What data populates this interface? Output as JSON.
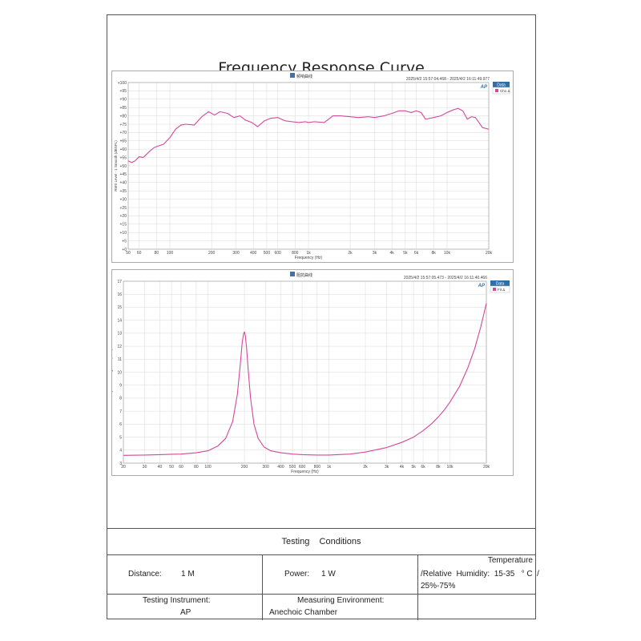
{
  "document": {
    "title": "Frequency Response Curve"
  },
  "panels": [
    {
      "header": "频响曲线",
      "timestamp": "2025/4/2 15:57:04.468 - 2025/4/2 16:11:49.977",
      "logo": "AP",
      "legend_title": "Data",
      "legend_entry": "Ch1 Δ",
      "ylabel": "RMS Level - 1 Smooth (dBSPL)",
      "xlabel": "Frequency (Hz)"
    },
    {
      "header": "阻抗曲线",
      "timestamp": "2025/4/2 15:57:05.473 - 2025/4/2 16:11:40.466",
      "logo": "AP",
      "legend_title": "Data",
      "legend_entry": "Fit Δ",
      "ylabel": "Impedance Magnitude (Ohm)",
      "xlabel": "Frequency (Hz)"
    }
  ],
  "conditions": {
    "title": "Testing    Conditions",
    "distance_label": "Distance:",
    "distance_value": "1 M",
    "power_label": "Power:",
    "power_value": "1 W",
    "temp_line1": "Temperature",
    "temp_line2": "/Relative  Humidity:  15-35   ° C  /",
    "temp_line3": "25%-75%",
    "instrument_label": "Testing Instrument:",
    "instrument_value": "AP",
    "environment_label": "Measuring Environment:",
    "environment_value": "Anechoic Chamber"
  },
  "colors": {
    "curve": "#d5479c",
    "legend_header": "#2f6fa8",
    "grid": "#d8d8d8"
  },
  "chart_data": [
    {
      "type": "line",
      "x_scale": "log",
      "xlim": [
        50,
        20000
      ],
      "ylim": [
        0,
        100
      ],
      "x_ticks": [
        50,
        60,
        80,
        100,
        200,
        300,
        400,
        500,
        600,
        800,
        1000,
        2000,
        3000,
        4000,
        5000,
        6000,
        8000,
        10000,
        20000
      ],
      "x_tick_labels": [
        "50",
        "60",
        "80",
        "100",
        "200",
        "300",
        "400",
        "500",
        "600",
        "800",
        "1k",
        "2k",
        "3k",
        "4k",
        "5k",
        "6k",
        "8k",
        "10k",
        "20k"
      ],
      "y_ticks": [
        0,
        5,
        10,
        15,
        20,
        25,
        30,
        35,
        40,
        45,
        50,
        55,
        60,
        65,
        70,
        75,
        80,
        85,
        90,
        95,
        100
      ],
      "y_tick_labels": [
        "+0",
        "+5",
        "+10",
        "+15",
        "+20",
        "+25",
        "+30",
        "+35",
        "+40",
        "+45",
        "+50",
        "+55",
        "+60",
        "+65",
        "+70",
        "+75",
        "+80",
        "+85",
        "+90",
        "+95",
        "+100"
      ],
      "grid": true,
      "legend_position": "right",
      "series": [
        {
          "name": "Ch1",
          "x": [
            50,
            53,
            56,
            60,
            64,
            68,
            72,
            77,
            83,
            90,
            100,
            110,
            120,
            130,
            150,
            170,
            190,
            210,
            230,
            260,
            290,
            320,
            350,
            390,
            430,
            480,
            530,
            600,
            680,
            760,
            850,
            950,
            1000,
            1100,
            1300,
            1500,
            1700,
            2000,
            2300,
            2700,
            3000,
            3500,
            4000,
            4500,
            5000,
            5500,
            6000,
            6500,
            7000,
            8000,
            9000,
            10000,
            11000,
            12000,
            13000,
            14000,
            15000,
            16000,
            17000,
            18000,
            20000
          ],
          "y": [
            53,
            52,
            53,
            55.5,
            55,
            57,
            59,
            61,
            62,
            63,
            67,
            72,
            74.5,
            75,
            74.5,
            79.5,
            82.5,
            80.5,
            82.5,
            81.5,
            79,
            80,
            77.5,
            76,
            73.5,
            77,
            78.5,
            79,
            77,
            76.5,
            76,
            76.5,
            76,
            76.5,
            76,
            80,
            80,
            79.5,
            79,
            79.5,
            79,
            80,
            81.5,
            83,
            83,
            82,
            83,
            82,
            78,
            79,
            80,
            82,
            83.5,
            84.5,
            83,
            78,
            79.5,
            79,
            76,
            73,
            72
          ]
        }
      ]
    },
    {
      "type": "line",
      "x_scale": "log",
      "xlim": [
        20,
        20000
      ],
      "ylim": [
        3,
        17
      ],
      "x_ticks": [
        20,
        30,
        40,
        50,
        60,
        80,
        100,
        200,
        300,
        400,
        500,
        600,
        800,
        1000,
        2000,
        3000,
        4000,
        5000,
        6000,
        8000,
        10000,
        20000
      ],
      "x_tick_labels": [
        "20",
        "30",
        "40",
        "50",
        "60",
        "80",
        "100",
        "200",
        "300",
        "400",
        "500",
        "600",
        "800",
        "1k",
        "2k",
        "3k",
        "4k",
        "5k",
        "6k",
        "8k",
        "10k",
        "20k"
      ],
      "y_ticks": [
        3,
        4,
        5,
        6,
        7,
        8,
        9,
        10,
        11,
        12,
        13,
        14,
        15,
        16,
        17
      ],
      "y_tick_labels": [
        "3",
        "4",
        "5",
        "6",
        "7",
        "8",
        "9",
        "10",
        "11",
        "12",
        "13",
        "14",
        "15",
        "16",
        "17"
      ],
      "grid": true,
      "legend_position": "right",
      "series": [
        {
          "name": "Fit",
          "x": [
            20,
            30,
            40,
            50,
            60,
            80,
            100,
            120,
            140,
            160,
            175,
            185,
            192,
            197,
            200,
            203,
            208,
            215,
            225,
            240,
            260,
            290,
            330,
            400,
            500,
            600,
            800,
            1000,
            1500,
            2000,
            3000,
            4000,
            5000,
            6000,
            7000,
            8000,
            9000,
            10000,
            12000,
            14000,
            16000,
            18000,
            20000
          ],
          "y": [
            3.6,
            3.62,
            3.65,
            3.68,
            3.7,
            3.8,
            3.95,
            4.3,
            4.9,
            6.2,
            8.3,
            10.6,
            12.3,
            12.95,
            13.1,
            12.9,
            12.0,
            10.2,
            8.0,
            6.0,
            4.9,
            4.25,
            3.95,
            3.8,
            3.7,
            3.65,
            3.62,
            3.62,
            3.7,
            3.85,
            4.2,
            4.6,
            5.0,
            5.5,
            6.0,
            6.55,
            7.1,
            7.7,
            8.9,
            10.3,
            11.8,
            13.5,
            15.3
          ]
        }
      ]
    }
  ]
}
